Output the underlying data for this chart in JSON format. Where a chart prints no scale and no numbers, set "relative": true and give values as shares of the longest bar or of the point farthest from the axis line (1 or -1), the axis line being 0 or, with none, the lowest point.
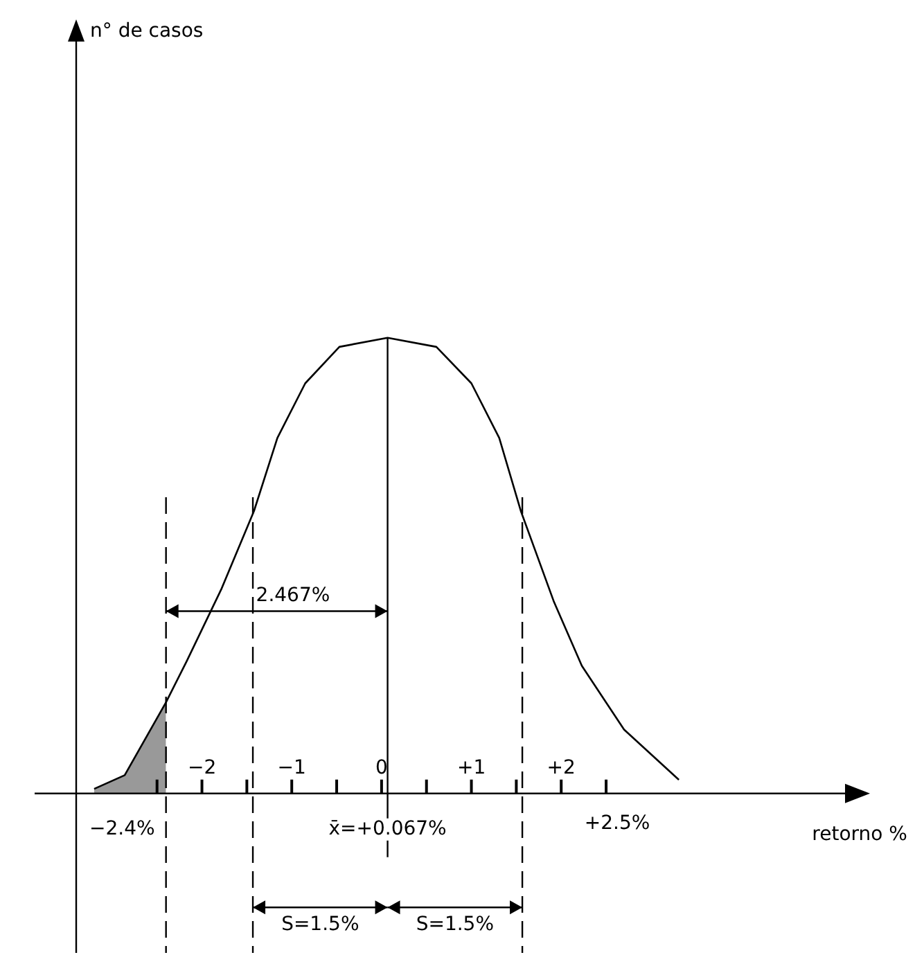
{
  "chart_data": {
    "type": "line",
    "relative": true,
    "xlabel": "retorno %",
    "xlim": [
      -3.4,
      5.16
    ],
    "xticks": [
      {
        "value": -2.5,
        "label": null
      },
      {
        "value": -2,
        "label": "−2"
      },
      {
        "value": -1.5,
        "label": null
      },
      {
        "value": -1,
        "label": "−1"
      },
      {
        "value": -0.5,
        "label": null
      },
      {
        "value": 0,
        "label": "0"
      },
      {
        "value": 0.5,
        "label": null
      },
      {
        "value": 1,
        "label": "+1"
      },
      {
        "value": 1.5,
        "label": null
      },
      {
        "value": 2,
        "label": "+2"
      },
      {
        "value": 2.5,
        "label": null
      }
    ],
    "series": [
      {
        "type": "line",
        "color": "#000000",
        "x": [
          -3.2,
          -2.86,
          -2.4,
          -2.17,
          -1.78,
          -1.42,
          -1.16,
          -0.85,
          -0.47,
          0.067,
          0.61,
          1.0,
          1.31,
          1.55,
          1.92,
          2.23,
          2.7,
          3.31
        ],
        "values": [
          0.01,
          0.04,
          0.2,
          0.29,
          0.45,
          0.62,
          0.78,
          0.9,
          0.98,
          1,
          0.98,
          0.9,
          0.78,
          0.62,
          0.42,
          0.28,
          0.14,
          0.03
        ]
      },
      {
        "type": "area",
        "color": "#555555",
        "x": [
          -3.2,
          -2.86,
          -2.4
        ],
        "values": [
          0.01,
          0.04,
          0.2
        ]
      }
    ],
    "ref_lines": [
      {
        "axis": "x",
        "value": -2.4,
        "label": "−2.4%",
        "line_style": "dashed"
      },
      {
        "axis": "x",
        "value": 0.067,
        "label": "x̄=+0.067%",
        "line_style": "solid"
      },
      {
        "axis": "x",
        "value": -1.433,
        "line_style": "dashed"
      },
      {
        "axis": "x",
        "value": 1.567,
        "line_style": "dashed"
      }
    ],
    "annotations": [
      "2.467%",
      "S=1.5%",
      "S=1.5%",
      "+2.5%",
      "n° de casos"
    ],
    "legend": false,
    "marker": "none",
    "line_style": "solid"
  }
}
